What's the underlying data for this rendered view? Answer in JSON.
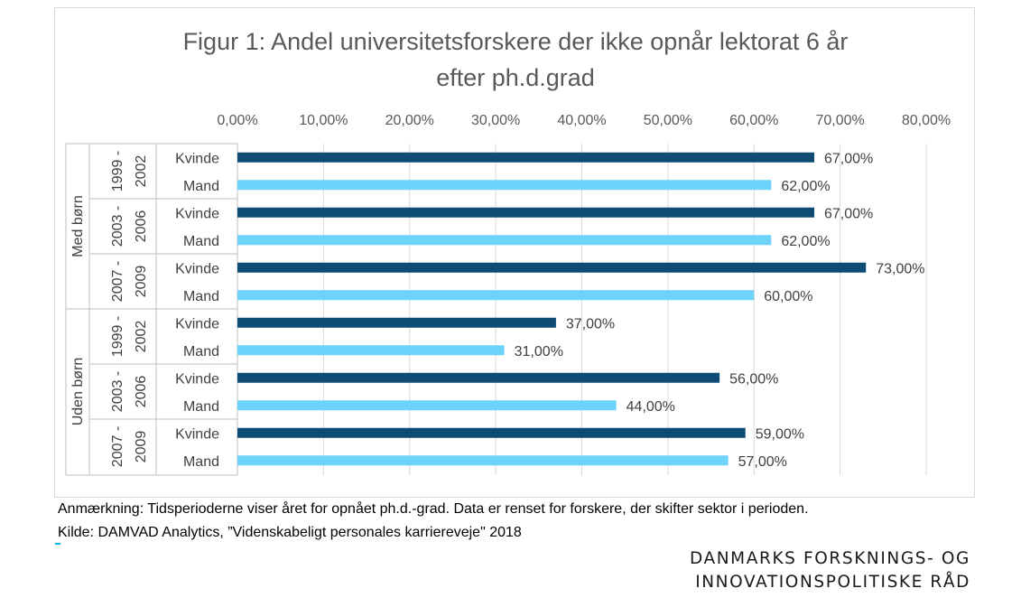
{
  "chart_data": {
    "type": "bar",
    "orientation": "horizontal",
    "title_lines": [
      "Figur 1: Andel universitetsforskere der ikke opnår lektorat 6 år",
      "efter ph.d.grad"
    ],
    "xaxis": {
      "position": "top",
      "min": 0,
      "max": 80,
      "step": 10,
      "tick_labels": [
        "0,00%",
        "10,00%",
        "20,00%",
        "30,00%",
        "40,00%",
        "50,00%",
        "60,00%",
        "70,00%",
        "80,00%"
      ]
    },
    "grid": "vertical",
    "legend": "none",
    "colors": {
      "Kvinde": "#0f4c75",
      "Mand": "#6dd3fb"
    },
    "groups": [
      {
        "label": "Med børn",
        "periods": [
          {
            "label_lines": [
              "1999 -",
              "2002"
            ],
            "bars": [
              {
                "category": "Kvinde",
                "value": 67,
                "label": "67,00%"
              },
              {
                "category": "Mand",
                "value": 62,
                "label": "62,00%"
              }
            ]
          },
          {
            "label_lines": [
              "2003 -",
              "2006"
            ],
            "bars": [
              {
                "category": "Kvinde",
                "value": 67,
                "label": "67,00%"
              },
              {
                "category": "Mand",
                "value": 62,
                "label": "62,00%"
              }
            ]
          },
          {
            "label_lines": [
              "2007 -",
              "2009"
            ],
            "bars": [
              {
                "category": "Kvinde",
                "value": 73,
                "label": "73,00%"
              },
              {
                "category": "Mand",
                "value": 60,
                "label": "60,00%"
              }
            ]
          }
        ]
      },
      {
        "label": "Uden børn",
        "periods": [
          {
            "label_lines": [
              "1999 -",
              "2002"
            ],
            "bars": [
              {
                "category": "Kvinde",
                "value": 37,
                "label": "37,00%"
              },
              {
                "category": "Mand",
                "value": 31,
                "label": "31,00%"
              }
            ]
          },
          {
            "label_lines": [
              "2003 -",
              "2006"
            ],
            "bars": [
              {
                "category": "Kvinde",
                "value": 56,
                "label": "56,00%"
              },
              {
                "category": "Mand",
                "value": 44,
                "label": "44,00%"
              }
            ]
          },
          {
            "label_lines": [
              "2007 -",
              "2009"
            ],
            "bars": [
              {
                "category": "Kvinde",
                "value": 59,
                "label": "59,00%"
              },
              {
                "category": "Mand",
                "value": 57,
                "label": "57,00%"
              }
            ]
          }
        ]
      }
    ]
  },
  "notes": {
    "line1": "Anmærkning: Tidsperioderne viser året for opnået ph.d.-grad. Data er renset for forskere, der skifter sektor i perioden.",
    "line2": "Kilde: DAMVAD Analytics, ”Videnskabeligt personales karriereveje\" 2018"
  },
  "brand": {
    "line1": "DANMARKS FORSKNINGS- OG",
    "line2": "INNOVATIONSPOLITISKE RÅD"
  }
}
